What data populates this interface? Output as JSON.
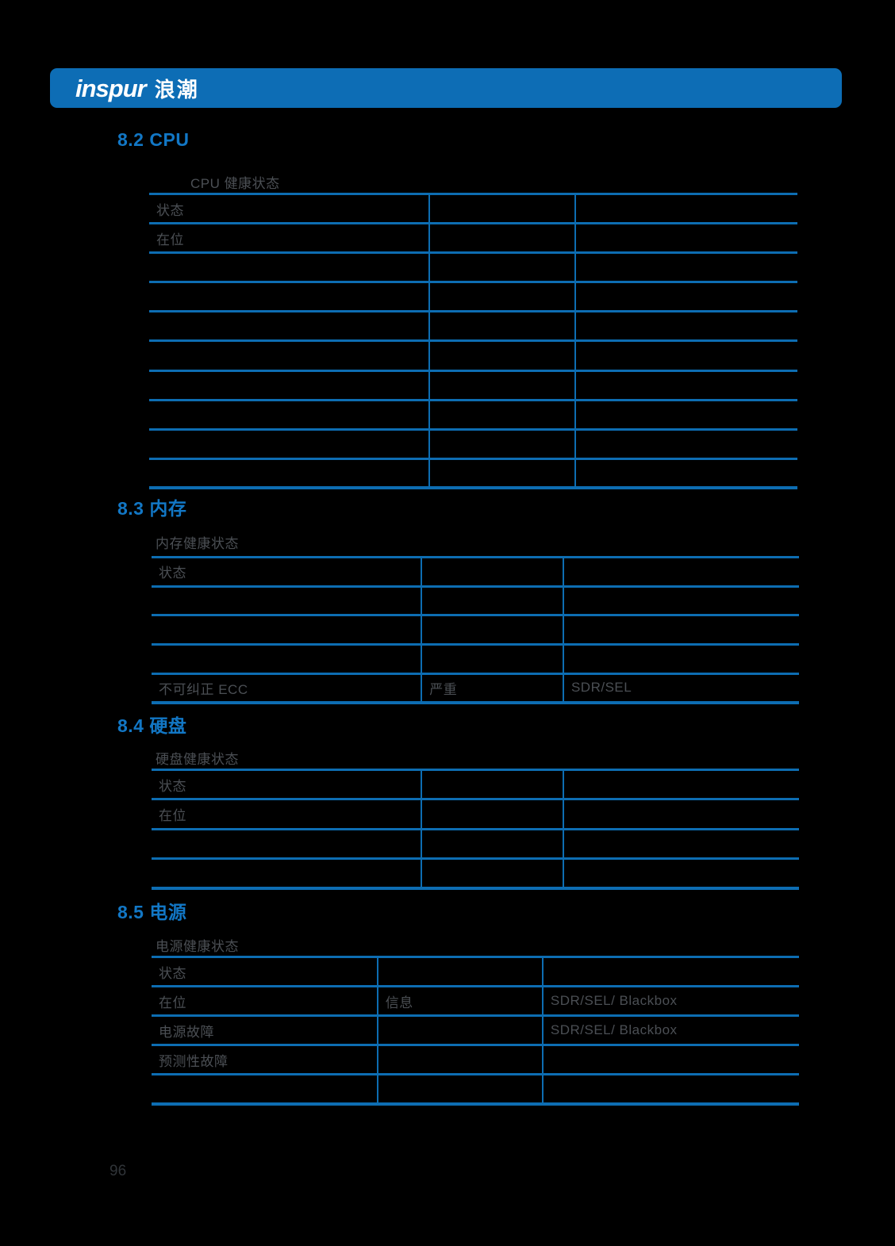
{
  "document": {
    "page_number": "96"
  },
  "header": {
    "brand_latin": "inspur",
    "brand_cjk": "浪潮"
  },
  "colors": {
    "page_background": "#000000",
    "header_bar_blue": "#0d6db5",
    "heading_blue": "#1277c5",
    "table_line_blue": "#0d6db2",
    "body_text_gray": "#4b4f54",
    "page_number_gray": "#303438"
  },
  "sections": [
    {
      "heading": "8.2 CPU",
      "caption": "CPU 健康状态",
      "table": {
        "col_widths_pct": [
          43.2,
          22.5,
          34.3
        ],
        "rows": [
          [
            "状态",
            "",
            ""
          ],
          [
            "在位",
            "",
            ""
          ],
          [
            "",
            "",
            ""
          ],
          [
            "",
            "",
            ""
          ],
          [
            "",
            "",
            ""
          ],
          [
            "",
            "",
            ""
          ],
          [
            "",
            "",
            ""
          ],
          [
            "",
            "",
            ""
          ],
          [
            "",
            "",
            ""
          ],
          [
            "",
            "",
            ""
          ]
        ]
      }
    },
    {
      "heading": "8.3 内存",
      "caption": "内存健康状态",
      "table": {
        "col_widths_pct": [
          41.7,
          21.9,
          36.4
        ],
        "rows": [
          [
            "状态",
            "",
            ""
          ],
          [
            "",
            "",
            ""
          ],
          [
            "",
            "",
            ""
          ],
          [
            "",
            "",
            ""
          ],
          [
            "不可纠正 ECC",
            "严重",
            "SDR/SEL"
          ]
        ]
      }
    },
    {
      "heading": "8.4 硬盘",
      "caption": "硬盘健康状态",
      "table": {
        "col_widths_pct": [
          41.7,
          21.9,
          36.4
        ],
        "rows": [
          [
            "状态",
            "",
            ""
          ],
          [
            "在位",
            "",
            ""
          ],
          [
            "",
            "",
            ""
          ],
          [
            "",
            "",
            ""
          ]
        ]
      }
    },
    {
      "heading": "8.5 电源",
      "caption": "电源健康状态",
      "table": {
        "col_widths_pct": [
          34.9,
          25.5,
          39.6
        ],
        "rows": [
          [
            "状态",
            "",
            ""
          ],
          [
            "在位",
            "信息",
            "SDR/SEL/ Blackbox"
          ],
          [
            "电源故障",
            "",
            "SDR/SEL/ Blackbox"
          ],
          [
            "预测性故障",
            "",
            ""
          ],
          [
            "",
            "",
            ""
          ]
        ]
      }
    }
  ]
}
